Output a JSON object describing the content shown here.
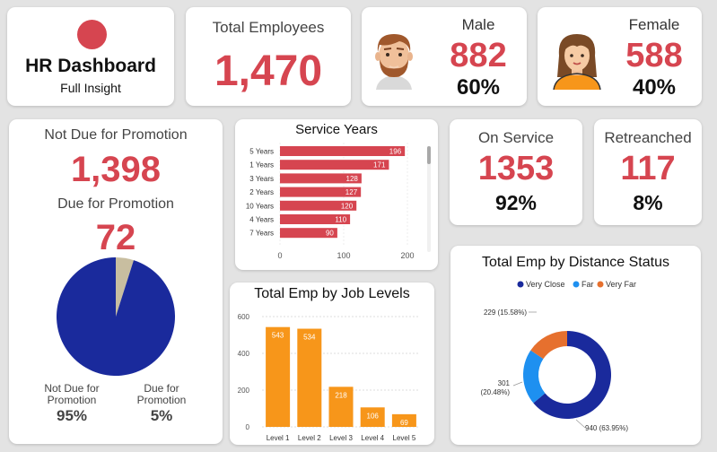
{
  "header": {
    "title": "HR Dashboard",
    "subtitle": "Full Insight",
    "logo_color": "#d64550"
  },
  "total": {
    "label": "Total Employees",
    "value": "1,470"
  },
  "male": {
    "label": "Male",
    "value": "882",
    "pct": "60%",
    "icon": "male-avatar-icon"
  },
  "female": {
    "label": "Female",
    "value": "588",
    "pct": "40%",
    "icon": "female-avatar-icon"
  },
  "promotion": {
    "not_due_label": "Not Due for Promotion",
    "not_due_value": "1,398",
    "due_label": "Due for Promotion",
    "due_value": "72",
    "legend_not_due_line1": "Not Due for",
    "legend_not_due_line2": "Promotion",
    "legend_not_due_pct": "95%",
    "legend_due_line1": "Due for",
    "legend_due_line2": "Promotion",
    "legend_due_pct": "5%"
  },
  "on_service": {
    "label": "On Service",
    "value": "1353",
    "pct": "92%"
  },
  "retrenched": {
    "label": "Retreanched",
    "value": "117",
    "pct": "8%"
  },
  "chart_data": [
    {
      "type": "pie",
      "name": "promotion-pie",
      "categories": [
        "Not Due for Promotion",
        "Due for Promotion"
      ],
      "values": [
        1398,
        72
      ],
      "colors": [
        "#1a2a9c",
        "#c8bea0"
      ]
    },
    {
      "type": "bar",
      "orientation": "horizontal",
      "title": "Service Years",
      "categories": [
        "5 Years",
        "1 Years",
        "3 Years",
        "2 Years",
        "10 Years",
        "4 Years",
        "7 Years"
      ],
      "values": [
        196,
        171,
        128,
        127,
        120,
        110,
        90
      ],
      "xlim": [
        0,
        200
      ],
      "xticks": [
        "0",
        "100",
        "200"
      ],
      "color": "#d64550"
    },
    {
      "type": "bar",
      "title": "Total Emp by Job Levels",
      "categories": [
        "Level 1",
        "Level 2",
        "Level 3",
        "Level 4",
        "Level 5"
      ],
      "values": [
        543,
        534,
        218,
        106,
        69
      ],
      "ylim": [
        0,
        600
      ],
      "yticks": [
        "0",
        "200",
        "400",
        "600"
      ],
      "grid": true,
      "color": "#f7961a"
    },
    {
      "type": "pie",
      "donut": true,
      "title": "Total Emp by Distance Status",
      "legend_position": "top",
      "categories": [
        "Very Close",
        "Far",
        "Very Far"
      ],
      "values": [
        940,
        301,
        229
      ],
      "labels": [
        "940 (63.95%)",
        "301\n(20.48%)",
        "229 (15.58%)"
      ],
      "colors": [
        "#1a2a9c",
        "#1e90f0",
        "#e6702e"
      ]
    }
  ]
}
